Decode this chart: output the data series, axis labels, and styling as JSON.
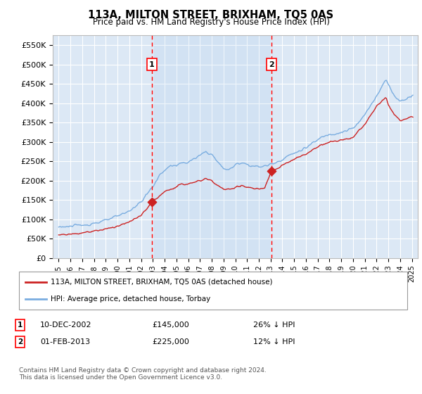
{
  "title": "113A, MILTON STREET, BRIXHAM, TQ5 0AS",
  "subtitle": "Price paid vs. HM Land Registry's House Price Index (HPI)",
  "ylim": [
    0,
    575000
  ],
  "yticks": [
    0,
    50000,
    100000,
    150000,
    200000,
    250000,
    300000,
    350000,
    400000,
    450000,
    500000,
    550000
  ],
  "ytick_labels": [
    "£0",
    "£50K",
    "£100K",
    "£150K",
    "£200K",
    "£250K",
    "£300K",
    "£350K",
    "£400K",
    "£450K",
    "£500K",
    "£550K"
  ],
  "plot_bg_color": "#dce8f5",
  "grid_color": "#ffffff",
  "hpi_color": "#7aade0",
  "price_color": "#cc2222",
  "marker1_x": 2002.92,
  "marker1_y": 145000,
  "marker2_x": 2013.08,
  "marker2_y": 225000,
  "legend_line1": "113A, MILTON STREET, BRIXHAM, TQ5 0AS (detached house)",
  "legend_line2": "HPI: Average price, detached house, Torbay",
  "marker1_date": "10-DEC-2002",
  "marker1_price": "£145,000",
  "marker1_note": "26% ↓ HPI",
  "marker2_date": "01-FEB-2013",
  "marker2_price": "£225,000",
  "marker2_note": "12% ↓ HPI",
  "footnote": "Contains HM Land Registry data © Crown copyright and database right 2024.\nThis data is licensed under the Open Government Licence v3.0.",
  "xlim_left": 1994.5,
  "xlim_right": 2025.5
}
